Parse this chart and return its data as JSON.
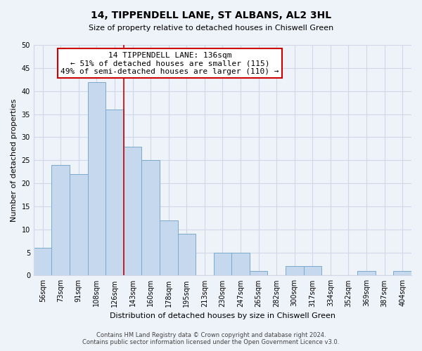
{
  "title": "14, TIPPENDELL LANE, ST ALBANS, AL2 3HL",
  "subtitle": "Size of property relative to detached houses in Chiswell Green",
  "xlabel": "Distribution of detached houses by size in Chiswell Green",
  "ylabel": "Number of detached properties",
  "bin_labels": [
    "56sqm",
    "73sqm",
    "91sqm",
    "108sqm",
    "126sqm",
    "143sqm",
    "160sqm",
    "178sqm",
    "195sqm",
    "213sqm",
    "230sqm",
    "247sqm",
    "265sqm",
    "282sqm",
    "300sqm",
    "317sqm",
    "334sqm",
    "352sqm",
    "369sqm",
    "387sqm",
    "404sqm"
  ],
  "bar_heights": [
    6,
    24,
    22,
    42,
    36,
    28,
    25,
    12,
    9,
    0,
    5,
    5,
    1,
    0,
    2,
    2,
    0,
    0,
    1,
    0,
    1
  ],
  "bar_color": "#c5d8ee",
  "bar_edge_color": "#7aaacc",
  "vline_x_index": 4,
  "vline_color": "#cc0000",
  "annotation_title": "14 TIPPENDELL LANE: 136sqm",
  "annotation_line1": "← 51% of detached houses are smaller (115)",
  "annotation_line2": "49% of semi-detached houses are larger (110) →",
  "annotation_box_color": "#ffffff",
  "annotation_box_edge": "#cc0000",
  "ylim": [
    0,
    50
  ],
  "yticks": [
    0,
    5,
    10,
    15,
    20,
    25,
    30,
    35,
    40,
    45,
    50
  ],
  "footer_line1": "Contains HM Land Registry data © Crown copyright and database right 2024.",
  "footer_line2": "Contains public sector information licensed under the Open Government Licence v3.0.",
  "bg_color": "#eef2f9",
  "grid_color": "#d0d8e8",
  "title_fontsize": 10,
  "subtitle_fontsize": 8,
  "axis_label_fontsize": 8,
  "tick_fontsize": 7,
  "annotation_fontsize": 8
}
